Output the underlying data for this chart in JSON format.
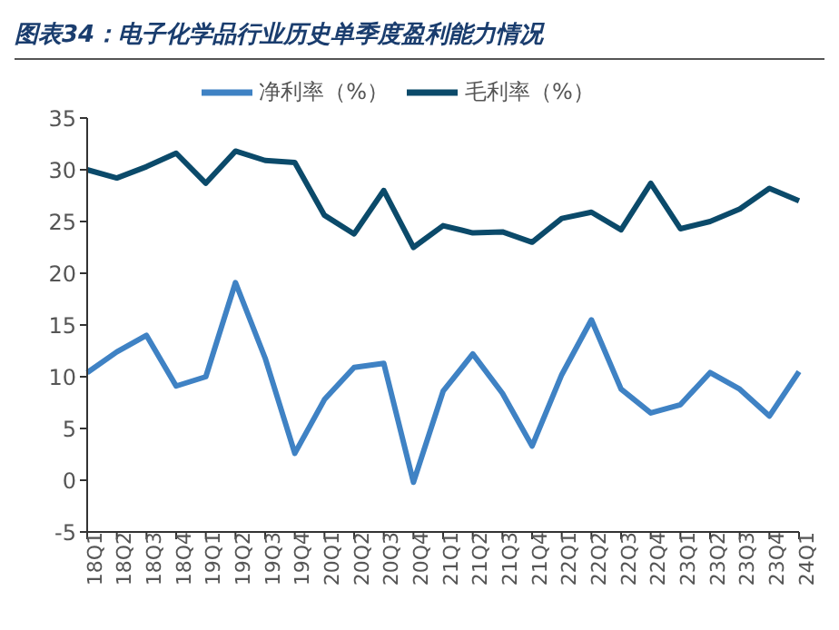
{
  "chart_data": {
    "type": "line",
    "title": "图表34：电子化学品行业历史单季度盈利能力情况",
    "categories": [
      "18Q1",
      "18Q2",
      "18Q3",
      "18Q4",
      "19Q1",
      "19Q2",
      "19Q3",
      "19Q4",
      "20Q1",
      "20Q2",
      "20Q3",
      "20Q4",
      "21Q1",
      "21Q2",
      "21Q3",
      "21Q4",
      "22Q1",
      "22Q2",
      "22Q3",
      "22Q4",
      "23Q1",
      "23Q2",
      "23Q3",
      "23Q4",
      "24Q1"
    ],
    "series": [
      {
        "name": "毛利率（%）",
        "color": "#0b4a6a",
        "values": [
          30,
          29.2,
          30.3,
          31.6,
          28.7,
          31.8,
          30.9,
          30.7,
          25.6,
          23.8,
          28,
          22.5,
          24.6,
          23.9,
          24,
          23,
          25.3,
          25.9,
          24.2,
          28.7,
          24.3,
          25,
          26.2,
          28.2,
          27
        ]
      },
      {
        "name": "净利率（%）",
        "color": "#3f82c4",
        "values": [
          10.4,
          12.4,
          14,
          9.1,
          10,
          19.1,
          11.8,
          2.6,
          7.8,
          10.9,
          11.3,
          -0.2,
          8.6,
          12.2,
          8.4,
          3.3,
          10.2,
          15.5,
          8.8,
          6.5,
          7.3,
          10.4,
          8.8,
          6.2,
          10.5
        ]
      }
    ],
    "ylim": [
      -5,
      35
    ],
    "yticks": [
      -5,
      0,
      5,
      10,
      15,
      20,
      25,
      30,
      35
    ],
    "grid": false,
    "legend": "top",
    "marker": "none",
    "line_style": "solid"
  }
}
